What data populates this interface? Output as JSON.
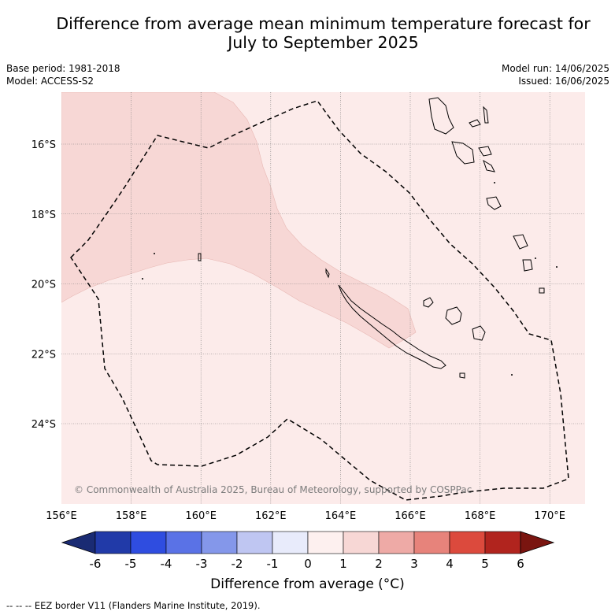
{
  "title": {
    "line1": "Difference from average mean minimum temperature forecast for",
    "line2": "July to September 2025"
  },
  "meta": {
    "base_period": "Base period: 1981-2018",
    "model": "Model: ACCESS-S2",
    "model_run": "Model run: 14/06/2025",
    "issued": "Issued: 16/06/2025"
  },
  "map": {
    "lon_ticks": [
      "156°E",
      "158°E",
      "160°E",
      "162°E",
      "164°E",
      "166°E",
      "168°E",
      "170°E"
    ],
    "lat_ticks": [
      "16°S",
      "18°S",
      "20°S",
      "22°S",
      "24°S"
    ],
    "copyright": "© Commonwealth of Australia 2025, Bureau of Meteorology, supported by COSPPac",
    "colors": {
      "background_anomaly_0_1": "#fcebea",
      "anomaly_1_2": "#f7d7d5",
      "coastline": "#000000",
      "eez_border": "#000000"
    }
  },
  "colorbar": {
    "title": "Difference from average (°C)",
    "tick_labels": [
      "-6",
      "-5",
      "-4",
      "-3",
      "-2",
      "-1",
      "0",
      "1",
      "2",
      "3",
      "4",
      "5",
      "6"
    ],
    "colors": [
      "#1a2b73",
      "#213aa8",
      "#2f4de0",
      "#5a72e6",
      "#8497ea",
      "#bfc6f2",
      "#e8ebfb",
      "#fdf0ef",
      "#f7d7d5",
      "#eeaaa6",
      "#e7837b",
      "#dc4a3d",
      "#b1241e",
      "#7a1510"
    ]
  },
  "footer": "--  --  -- EEZ border V11 (Flanders Marine Institute, 2019)."
}
